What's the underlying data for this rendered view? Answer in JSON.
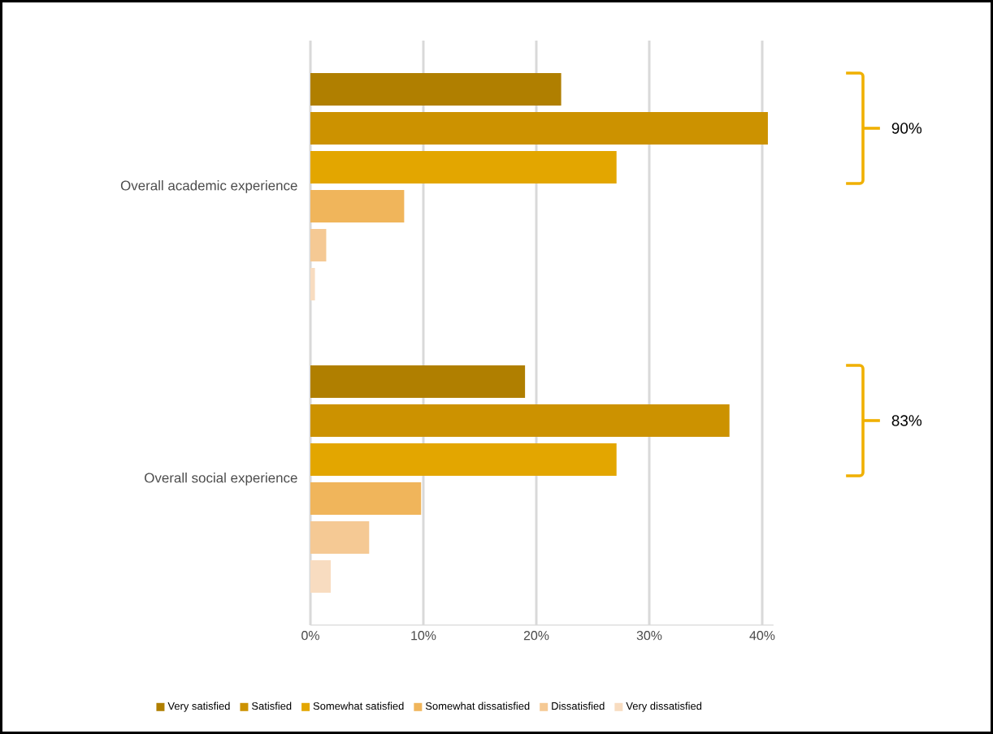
{
  "chart_data": {
    "type": "bar",
    "orientation": "horizontal",
    "categories": [
      "Overall academic experience",
      "Overall social experience"
    ],
    "series": [
      {
        "name": "Very satisfied",
        "color": "#b07f00",
        "values": [
          22.2,
          19.0
        ]
      },
      {
        "name": "Satisfied",
        "color": "#cc9200",
        "values": [
          40.5,
          37.1
        ]
      },
      {
        "name": "Somewhat satisfied",
        "color": "#e3a600",
        "values": [
          27.1,
          27.1
        ]
      },
      {
        "name": "Somewhat dissatisfied",
        "color": "#f0b55b",
        "values": [
          8.3,
          9.8
        ]
      },
      {
        "name": "Dissatisfied",
        "color": "#f5c994",
        "values": [
          1.4,
          5.2
        ]
      },
      {
        "name": "Very dissatisfied",
        "color": "#f8dcc0",
        "values": [
          0.4,
          1.8
        ]
      }
    ],
    "xlim": [
      0,
      41
    ],
    "xticks": [
      {
        "value": 0,
        "label": "0%"
      },
      {
        "value": 10,
        "label": "10%"
      },
      {
        "value": 20,
        "label": "20%"
      },
      {
        "value": 30,
        "label": "30%"
      },
      {
        "value": 40,
        "label": "40%"
      }
    ],
    "grid": "x",
    "legend": "bottom",
    "annotations": [
      "90%",
      "83%"
    ]
  }
}
